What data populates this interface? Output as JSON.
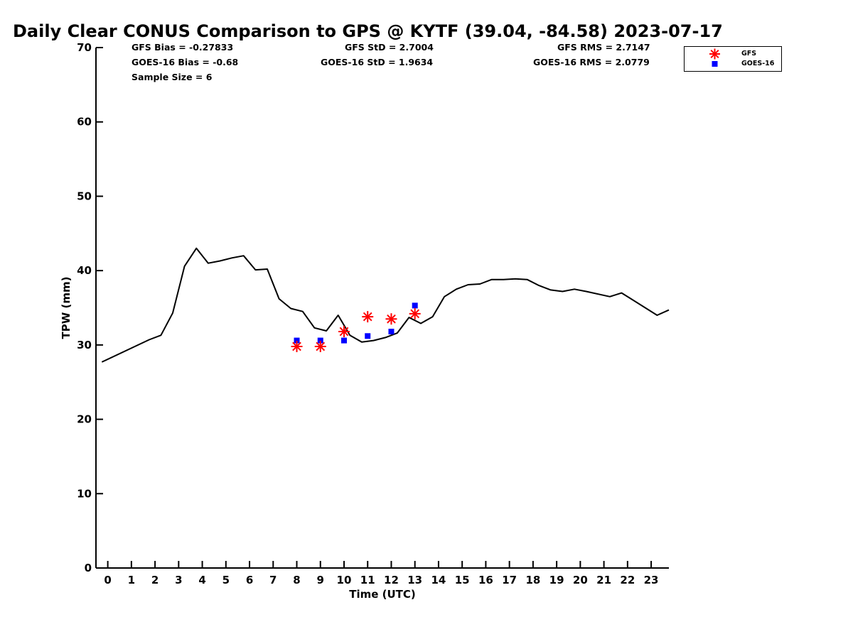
{
  "chart_data": {
    "type": "line",
    "title": "Daily Clear CONUS Comparison to GPS @ KYTF (39.04, -84.58) 2023-07-17",
    "xlabel": "Time (UTC)",
    "ylabel": "TPW (mm)",
    "xlim": [
      -0.5,
      23.75
    ],
    "ylim": [
      0,
      70
    ],
    "xticks": [
      0,
      1,
      2,
      3,
      4,
      5,
      6,
      7,
      8,
      9,
      10,
      11,
      12,
      13,
      14,
      15,
      16,
      17,
      18,
      19,
      20,
      21,
      22,
      23
    ],
    "yticks": [
      0,
      10,
      20,
      30,
      40,
      50,
      60,
      70
    ],
    "grid": false,
    "legend_position": "top-right",
    "gps_series": {
      "x": [
        -0.25,
        1.75,
        2.25,
        2.75,
        3.25,
        3.75,
        4.25,
        4.75,
        5.25,
        5.75,
        6.25,
        6.75,
        7.25,
        7.75,
        8.25,
        8.75,
        9.25,
        9.75,
        10.25,
        10.75,
        11.25,
        11.75,
        12.25,
        12.75,
        13.25,
        13.75,
        14.25,
        14.75,
        15.25,
        15.75,
        16.25,
        16.75,
        17.25,
        17.75,
        18.25,
        18.75,
        19.25,
        19.75,
        20.25,
        21.25,
        21.75,
        23.25,
        23.75
      ],
      "y": [
        27.7,
        30.7,
        31.3,
        34.3,
        40.6,
        43.0,
        41.0,
        41.3,
        41.7,
        42.0,
        40.1,
        40.2,
        36.2,
        34.9,
        34.5,
        32.3,
        31.9,
        34.0,
        31.3,
        30.4,
        30.6,
        31.0,
        31.6,
        33.7,
        32.9,
        33.8,
        36.5,
        37.5,
        38.1,
        38.2,
        38.8,
        38.8,
        38.9,
        38.8,
        38.0,
        37.4,
        37.2,
        37.5,
        37.2,
        36.5,
        37.0,
        34.0,
        34.7
      ]
    },
    "series": [
      {
        "name": "GFS",
        "marker": "asterisk",
        "color": "#ff0000",
        "x": [
          8,
          9,
          10,
          11,
          12,
          13
        ],
        "y": [
          29.8,
          29.8,
          31.8,
          33.8,
          33.5,
          34.2
        ]
      },
      {
        "name": "GOES-16",
        "marker": "square",
        "color": "#0000ff",
        "x": [
          8,
          9,
          10,
          11,
          12,
          13
        ],
        "y": [
          30.6,
          30.6,
          30.6,
          31.2,
          31.8,
          35.3
        ]
      }
    ],
    "stats": {
      "gfs_bias": "GFS Bias = -0.27833",
      "goes_bias": "GOES-16 Bias = -0.68",
      "sample_size": "Sample Size = 6",
      "gfs_std": "GFS StD = 2.7004",
      "goes_std": "GOES-16 StD = 1.9634",
      "gfs_rms": "GFS RMS = 2.7147",
      "goes_rms": "GOES-16 RMS = 2.0779"
    }
  }
}
